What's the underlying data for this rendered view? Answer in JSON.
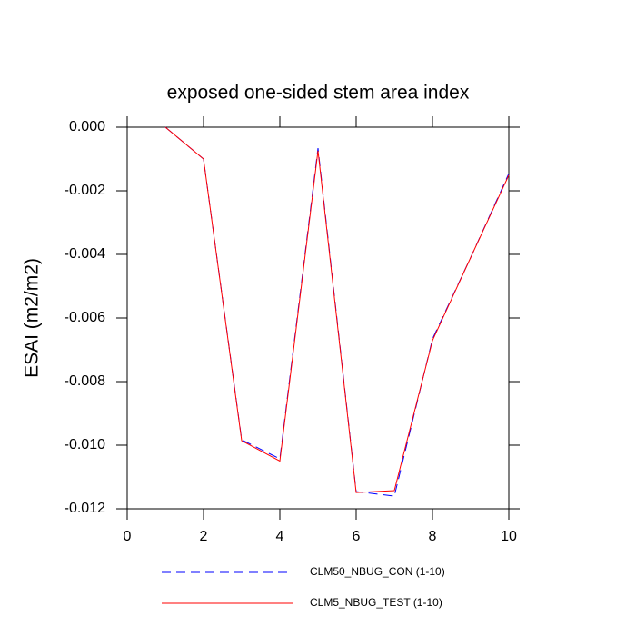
{
  "chart_data": {
    "type": "line",
    "title": "exposed one-sided stem area index",
    "y_label": "ESAI  (m2/m2)",
    "x": [
      1,
      2,
      3,
      4,
      5,
      6,
      7,
      8,
      9,
      10
    ],
    "series": [
      {
        "name": "CLM50_NBUG_CON (1-10)",
        "color": "#0000ff",
        "dash": true,
        "values": [
          0,
          -0.001,
          -0.00983,
          -0.01043,
          -0.00066,
          -0.01146,
          -0.0116,
          -0.00666,
          -0.0041,
          -0.00146
        ]
      },
      {
        "name": "CLM5_NBUG_TEST (1-10)",
        "color": "#ff0000",
        "dash": false,
        "values": [
          0,
          -0.001,
          -0.00986,
          -0.0105,
          -0.00074,
          -0.01149,
          -0.01143,
          -0.00671,
          -0.0041,
          -0.00151
        ]
      }
    ],
    "xlim": [
      0,
      10
    ],
    "xticks": [
      0,
      2,
      4,
      6,
      8,
      10
    ],
    "ylim": [
      -0.012,
      0
    ],
    "yticks": [
      {
        "value": 0,
        "label": "0.000"
      },
      {
        "value": -0.002,
        "label": "-0.002"
      },
      {
        "value": -0.004,
        "label": "-0.004"
      },
      {
        "value": -0.006,
        "label": "-0.006"
      },
      {
        "value": -0.008,
        "label": "-0.008"
      },
      {
        "value": -0.01,
        "label": "-0.010"
      },
      {
        "value": -0.012,
        "label": "-0.012"
      }
    ]
  }
}
